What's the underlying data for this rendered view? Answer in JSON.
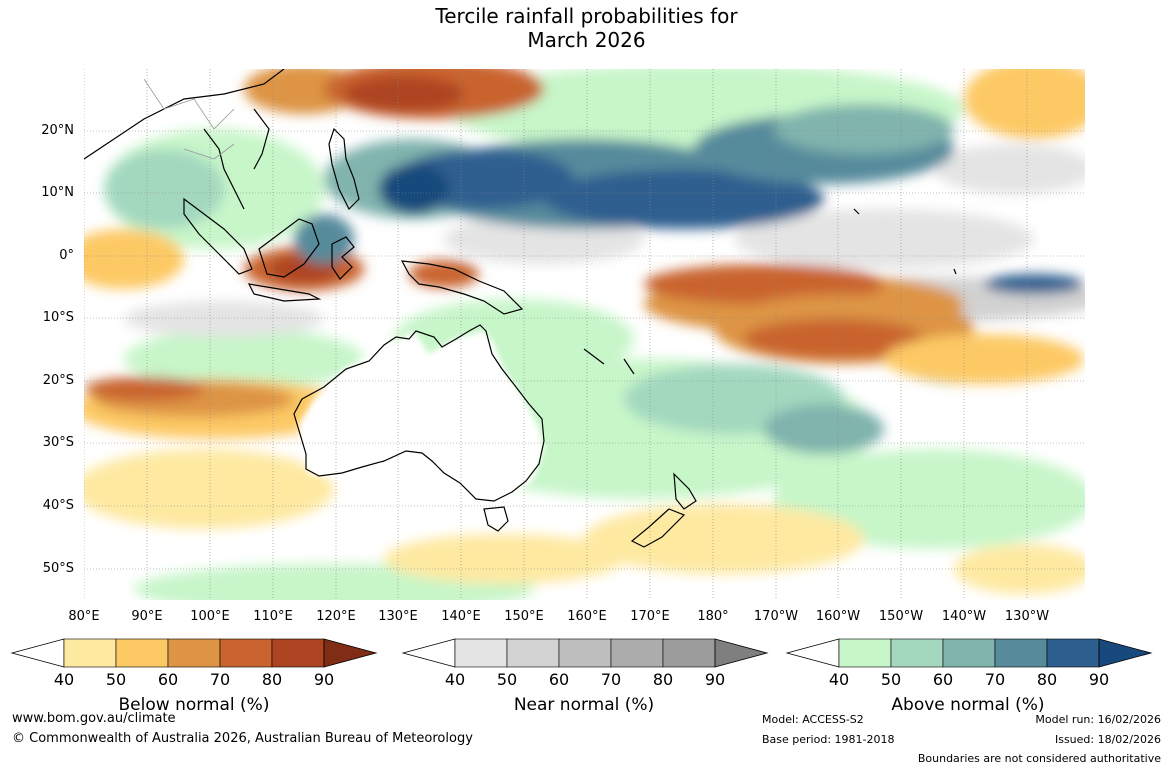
{
  "title": {
    "line1": "Tercile rainfall probabilities for",
    "line2": "March 2026"
  },
  "map": {
    "lat_labels": [
      "20°N",
      "10°N",
      "0°",
      "10°S",
      "20°S",
      "30°S",
      "40°S",
      "50°S"
    ],
    "lon_labels": [
      "80°E",
      "90°E",
      "100°E",
      "110°E",
      "120°E",
      "130°E",
      "140°E",
      "150°E",
      "160°E",
      "170°E",
      "180°",
      "170°W",
      "160°W",
      "150°W",
      "140°W",
      "130°W"
    ],
    "colors": {
      "below": [
        "#fee9a1",
        "#fdc965",
        "#dd9444",
        "#c9642f",
        "#ad4422",
        "#7f2d14"
      ],
      "near": [
        "#e4e4e4",
        "#d2d2d2",
        "#bebebe",
        "#acacac",
        "#9c9c9c",
        "#7f7f7f"
      ],
      "above": [
        "#c7f6c9",
        "#a3d8bf",
        "#80b4ad",
        "#578b9c",
        "#2f5f8f",
        "#18497c"
      ],
      "land_outline": "#000000",
      "grid": "#888888"
    }
  },
  "colorbars": [
    {
      "label": "Below normal (%)",
      "ticks": [
        "40",
        "50",
        "60",
        "70",
        "80",
        "90"
      ]
    },
    {
      "label": "Near normal (%)",
      "ticks": [
        "40",
        "50",
        "60",
        "70",
        "80",
        "90"
      ]
    },
    {
      "label": "Above normal (%)",
      "ticks": [
        "40",
        "50",
        "60",
        "70",
        "80",
        "90"
      ]
    }
  ],
  "footer": {
    "website": "www.bom.gov.au/climate",
    "copyright": "© Commonwealth of Australia 2026, Australian Bureau of Meteorology",
    "model": "Model: ACCESS-S2",
    "base_period": "Base period: 1981-2018",
    "model_run": "Model run: 16/02/2026",
    "issued": "Issued: 18/02/2026",
    "disclaimer": "Boundaries are not considered authoritative"
  }
}
